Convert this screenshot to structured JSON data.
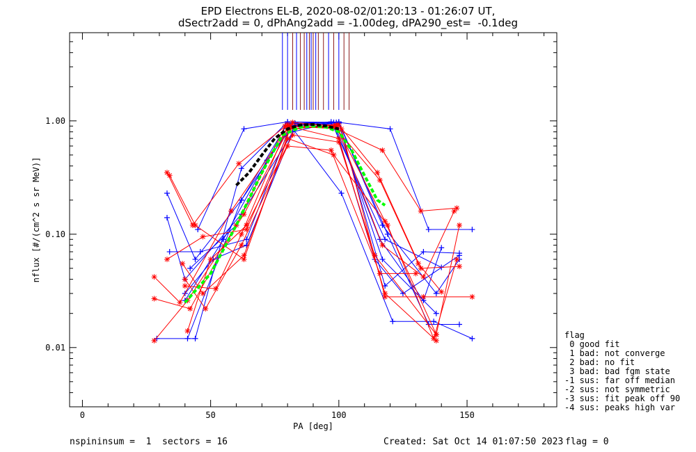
{
  "title_line1": "EPD Electrons EL-B, 2020-08-02/01:20:13 - 01:26:07 UT,",
  "title_line2": "dSectr2add = 0, dPhAng2add = -1.00deg, dPA290_est=  -0.1deg",
  "footer": {
    "left": "nspininsum =  1  sectors = 16",
    "created": "Created: Sat Oct 14 01:07:50 2023",
    "flag": "flag = 0"
  },
  "legend": {
    "title": "flag",
    "items": [
      " 0 good fit",
      " 1 bad: not converge",
      " 2 bad: no fit",
      " 3 bad: bad fgm state",
      "-1 sus: far off median",
      "-2 sus: not symmetric",
      "-3 sus: fit peak off 90",
      "-4 sus: peaks high var"
    ]
  },
  "colors": {
    "blue": "#0000ff",
    "red": "#ff0000",
    "green": "#00ff00",
    "black": "#000000",
    "darkred": "#8b1a1a"
  },
  "chart_data": {
    "type": "line",
    "xlabel": "PA [deg]",
    "ylabel": "nflux [#/(cm^2 s sr MeV)]",
    "xlim": [
      -5,
      185
    ],
    "ylim": [
      0.003,
      6
    ],
    "ylog": true,
    "x_ticks": [
      0,
      50,
      100,
      150
    ],
    "x_tick_labels": [
      "0",
      "50",
      "100",
      "150"
    ],
    "y_ticks": [
      0.01,
      0.1,
      1.0
    ],
    "y_tick_labels": [
      "0.01",
      "0.10",
      "1.00"
    ],
    "vertical_markers": [
      {
        "x": 78,
        "color": "blue"
      },
      {
        "x": 80,
        "color": "blue"
      },
      {
        "x": 82,
        "color": "red"
      },
      {
        "x": 83.5,
        "color": "blue"
      },
      {
        "x": 85,
        "color": "red"
      },
      {
        "x": 86.5,
        "color": "red"
      },
      {
        "x": 87.5,
        "color": "blue"
      },
      {
        "x": 88.5,
        "color": "red"
      },
      {
        "x": 89.2,
        "color": "blue"
      },
      {
        "x": 90,
        "color": "red"
      },
      {
        "x": 91,
        "color": "blue"
      },
      {
        "x": 92,
        "color": "red"
      },
      {
        "x": 94,
        "color": "red"
      },
      {
        "x": 96,
        "color": "blue"
      },
      {
        "x": 98,
        "color": "red"
      },
      {
        "x": 100,
        "color": "blue"
      },
      {
        "x": 102,
        "color": "red"
      },
      {
        "x": 104,
        "color": "red"
      }
    ],
    "series": [
      {
        "color": "blue",
        "x": [
          41,
          62,
          80,
          100,
          119,
          135,
          147
        ],
        "y": [
          0.012,
          0.2,
          0.95,
          0.98,
          0.1,
          0.016,
          0.016
        ]
      },
      {
        "color": "blue",
        "x": [
          45,
          63,
          80,
          100,
          120,
          135,
          152
        ],
        "y": [
          0.11,
          0.85,
          0.98,
          0.97,
          0.85,
          0.11,
          0.11
        ]
      },
      {
        "color": "blue",
        "x": [
          34,
          46,
          64,
          81,
          100,
          118,
          133,
          147
        ],
        "y": [
          0.07,
          0.07,
          0.09,
          0.9,
          0.95,
          0.035,
          0.07,
          0.068
        ]
      },
      {
        "color": "blue",
        "x": [
          42,
          60,
          79,
          100,
          117,
          138,
          147
        ],
        "y": [
          0.05,
          0.12,
          0.9,
          0.97,
          0.12,
          0.03,
          0.06
        ]
      },
      {
        "color": "blue",
        "x": [
          40,
          55,
          72,
          83,
          99,
          116,
          133,
          140
        ],
        "y": [
          0.026,
          0.09,
          0.45,
          0.95,
          0.85,
          0.09,
          0.026,
          0.076
        ]
      },
      {
        "color": "blue",
        "x": [
          29,
          44,
          62,
          80,
          101,
          121,
          137,
          152
        ],
        "y": [
          0.012,
          0.012,
          0.38,
          0.98,
          0.23,
          0.017,
          0.017,
          0.012
        ]
      },
      {
        "color": "blue",
        "x": [
          33,
          44,
          62,
          82,
          99,
          117,
          138
        ],
        "y": [
          0.23,
          0.06,
          0.2,
          0.95,
          0.97,
          0.06,
          0.02
        ]
      },
      {
        "color": "blue",
        "x": [
          40,
          51,
          64,
          82,
          98,
          114,
          125,
          147
        ],
        "y": [
          0.03,
          0.06,
          0.08,
          0.8,
          0.97,
          0.06,
          0.03,
          0.065
        ]
      },
      {
        "color": "blue",
        "x": [
          33,
          40,
          62,
          84,
          97,
          118,
          140
        ],
        "y": [
          0.14,
          0.04,
          0.15,
          0.93,
          0.98,
          0.09,
          0.051
        ]
      },
      {
        "color": "red",
        "x": [
          28,
          41,
          63,
          81,
          98,
          117,
          132,
          146
        ],
        "y": [
          0.0115,
          0.026,
          0.15,
          0.9,
          0.87,
          0.55,
          0.16,
          0.17
        ]
      },
      {
        "color": "red",
        "x": [
          28,
          38,
          58,
          80,
          99,
          118,
          138,
          147
        ],
        "y": [
          0.042,
          0.025,
          0.16,
          0.85,
          0.9,
          0.13,
          0.013,
          0.12
        ]
      },
      {
        "color": "red",
        "x": [
          33,
          43,
          61,
          80,
          100,
          115,
          132,
          147
        ],
        "y": [
          0.35,
          0.12,
          0.42,
          0.93,
          0.92,
          0.35,
          0.05,
          0.052
        ]
      },
      {
        "color": "red",
        "x": [
          34,
          44,
          63,
          81,
          99,
          117,
          133,
          145
        ],
        "y": [
          0.33,
          0.12,
          0.06,
          0.85,
          0.92,
          0.08,
          0.042,
          0.16
        ]
      },
      {
        "color": "red",
        "x": [
          28,
          42,
          60,
          79,
          101,
          118,
          133,
          152
        ],
        "y": [
          0.027,
          0.022,
          0.12,
          0.9,
          0.85,
          0.028,
          0.028,
          0.028
        ]
      },
      {
        "color": "red",
        "x": [
          33,
          47,
          64,
          82,
          98,
          116,
          131,
          140
        ],
        "y": [
          0.06,
          0.095,
          0.11,
          0.97,
          0.9,
          0.3,
          0.055,
          0.031
        ]
      },
      {
        "color": "red",
        "x": [
          40,
          52,
          62,
          80,
          100,
          118,
          138
        ],
        "y": [
          0.035,
          0.033,
          0.1,
          0.9,
          0.7,
          0.03,
          0.0115
        ]
      },
      {
        "color": "red",
        "x": [
          39,
          47,
          63,
          80,
          98,
          119,
          137,
          146
        ],
        "y": [
          0.055,
          0.03,
          0.065,
          0.7,
          0.5,
          0.12,
          0.012,
          0.06
        ]
      },
      {
        "color": "red",
        "x": [
          40,
          48,
          62,
          80,
          97,
          116,
          130
        ],
        "y": [
          0.04,
          0.022,
          0.08,
          0.6,
          0.55,
          0.045,
          0.045
        ]
      },
      {
        "color": "red",
        "x": [
          41,
          50,
          64,
          82,
          100,
          114,
          138
        ],
        "y": [
          0.014,
          0.06,
          0.12,
          0.75,
          0.65,
          0.065,
          0.013
        ]
      }
    ],
    "fit_lines": [
      {
        "color": "green",
        "style": "dashed",
        "x": [
          40,
          50,
          60,
          70,
          78,
          85,
          90,
          95,
          100,
          105,
          110,
          115,
          118
        ],
        "y": [
          0.025,
          0.045,
          0.12,
          0.35,
          0.75,
          0.88,
          0.9,
          0.88,
          0.8,
          0.55,
          0.33,
          0.2,
          0.18
        ]
      },
      {
        "color": "black",
        "style": "dashed",
        "x": [
          60,
          65,
          70,
          75,
          80,
          85,
          90,
          95,
          100
        ],
        "y": [
          0.27,
          0.35,
          0.5,
          0.7,
          0.85,
          0.92,
          0.93,
          0.9,
          0.85
        ]
      }
    ]
  }
}
